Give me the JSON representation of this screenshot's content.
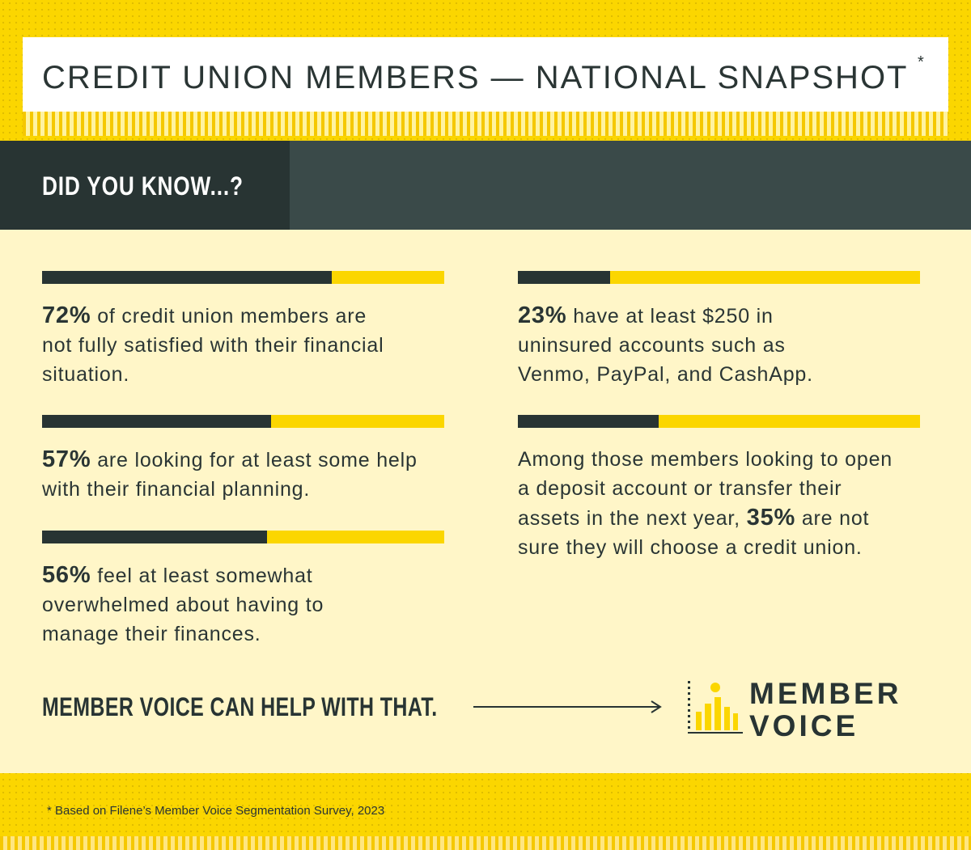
{
  "header": {
    "title": "CREDIT UNION MEMBERS — NATIONAL SNAPSHOT",
    "asterisk": "*"
  },
  "band": {
    "label": "DID YOU KNOW...?"
  },
  "colors": {
    "accent_yellow": "#FBD600",
    "dark": "#283433",
    "band_right": "#3A4A49",
    "content_bg": "#FFF6C8"
  },
  "stats": [
    {
      "percent": 72,
      "num": "72%",
      "text": " of credit union members are not fully satisfied with their financial situation."
    },
    {
      "percent": 57,
      "num": "57%",
      "text": " are looking for at least some help with their financial planning."
    },
    {
      "percent": 56,
      "num": "56%",
      "text": " feel at least somewhat overwhelmed about having to manage their finances."
    },
    {
      "percent": 23,
      "num": "23%",
      "text": " have at least $250 in uninsured accounts such as Venmo, PayPal, and CashApp."
    },
    {
      "percent": 35,
      "pre": "Among those members looking to open a deposit account or transfer their assets in the next year, ",
      "num": "35%",
      "text": " are not sure they will choose a credit union."
    }
  ],
  "cta": {
    "label": "MEMBER VOICE CAN HELP WITH THAT."
  },
  "logo": {
    "line1": "MEMBER",
    "line2": "VOICE",
    "icon": "bar-chart-person-icon"
  },
  "footnote": {
    "text": "* Based on Filene’s Member Voice Segmentation Survey, 2023"
  }
}
